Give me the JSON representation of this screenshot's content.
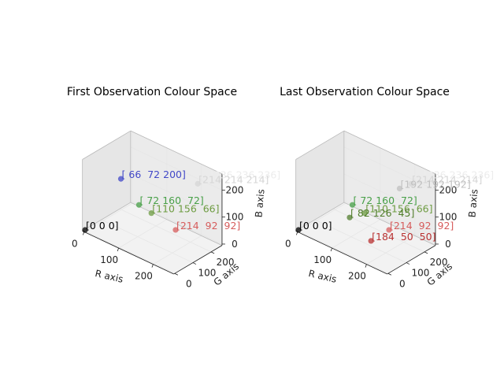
{
  "chart_data": [
    {
      "type": "scatter",
      "projection": "3d",
      "title": "First Observation Colour Space",
      "xlabel": "R axis",
      "ylabel": "G axis",
      "zlabel": "B axis",
      "xlim": [
        0,
        255
      ],
      "ylim": [
        0,
        255
      ],
      "zlim": [
        0,
        255
      ],
      "xticks": [
        "0",
        "100",
        "200"
      ],
      "yticks": [
        "0",
        "100",
        "200"
      ],
      "zticks": [
        "0",
        "100",
        "200"
      ],
      "grid": true,
      "points": [
        {
          "r": 0,
          "g": 0,
          "b": 0,
          "label": "[0 0 0]",
          "color": "#000000"
        },
        {
          "r": 66,
          "g": 72,
          "b": 200,
          "label": "[ 66  72 200]",
          "color": "#4248c8"
        },
        {
          "r": 72,
          "g": 160,
          "b": 72,
          "label": "[ 72 160  72]",
          "color": "#48a048"
        },
        {
          "r": 110,
          "g": 156,
          "b": 66,
          "label": "[110 156  66]",
          "color": "#6e9c42"
        },
        {
          "r": 214,
          "g": 92,
          "b": 92,
          "label": "[214  92  92]",
          "color": "#d65c5c"
        },
        {
          "r": 214,
          "g": 214,
          "b": 214,
          "label": "[214 214 214]",
          "color": "#d6d6d6"
        },
        {
          "r": 236,
          "g": 236,
          "b": 236,
          "label": "[236 236 236]",
          "color": "#ececec"
        }
      ]
    },
    {
      "type": "scatter",
      "projection": "3d",
      "title": "Last Observation Colour Space",
      "xlabel": "R axis",
      "ylabel": "G axis",
      "zlabel": "B axis",
      "xlim": [
        0,
        255
      ],
      "ylim": [
        0,
        255
      ],
      "zlim": [
        0,
        255
      ],
      "xticks": [
        "0",
        "100",
        "200"
      ],
      "yticks": [
        "0",
        "100",
        "200"
      ],
      "zticks": [
        "0",
        "100",
        "200"
      ],
      "grid": true,
      "points": [
        {
          "r": 0,
          "g": 0,
          "b": 0,
          "label": "[0 0 0]",
          "color": "#000000"
        },
        {
          "r": 72,
          "g": 160,
          "b": 72,
          "label": "[ 72 160  72]",
          "color": "#48a048"
        },
        {
          "r": 82,
          "g": 126,
          "b": 45,
          "label": "[ 82 126  45]",
          "color": "#527e2d"
        },
        {
          "r": 110,
          "g": 156,
          "b": 66,
          "label": "[110 156  66]",
          "color": "#6e9c42"
        },
        {
          "r": 184,
          "g": 50,
          "b": 50,
          "label": "[184  50  50]",
          "color": "#b83232"
        },
        {
          "r": 214,
          "g": 92,
          "b": 92,
          "label": "[214  92  92]",
          "color": "#d65c5c"
        },
        {
          "r": 192,
          "g": 192,
          "b": 192,
          "label": "[192 192 192]",
          "color": "#c0c0c0"
        },
        {
          "r": 214,
          "g": 214,
          "b": 214,
          "label": "[214 214 214]",
          "color": "#d6d6d6"
        },
        {
          "r": 236,
          "g": 236,
          "b": 236,
          "label": "[236 236 236]",
          "color": "#ececec"
        }
      ]
    }
  ]
}
